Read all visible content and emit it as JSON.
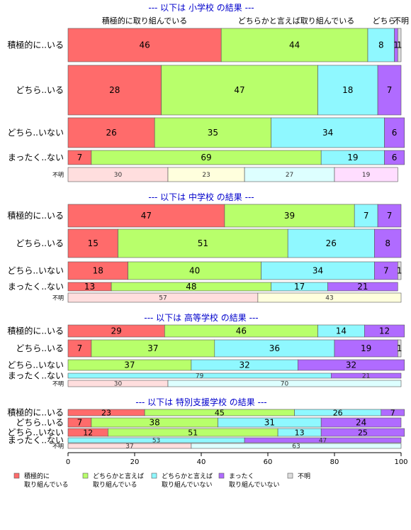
{
  "chart_data": {
    "type": "bar",
    "orientation": "horizontal-stacked-percent",
    "xlim": [
      0,
      100
    ],
    "x_ticks": [
      0,
      20,
      40,
      60,
      80,
      100
    ],
    "column_headers": [
      "積極的に取り組んでいる",
      "どちらかと言えば取り組んでいる",
      "どちら",
      "不明"
    ],
    "legend": [
      {
        "line1": "積極的に",
        "line2": "取り組んでいる",
        "color": "#ff6b6b"
      },
      {
        "line1": "どちらかと言えば",
        "line2": "取り組んでいる",
        "color": "#b8ff6b"
      },
      {
        "line1": "どちらかと言えば",
        "line2": "取り組んでいない",
        "color": "#8ff8ff"
      },
      {
        "line1": "まったく",
        "line2": "取り組んでいない",
        "color": "#b06bff"
      },
      {
        "line1": "不明",
        "line2": "",
        "color": "#dddddd"
      }
    ],
    "panels": [
      {
        "title": "--- 以下は 小学校 の結果 ---",
        "rows": [
          {
            "label": "積極的に..いる",
            "values": [
              46,
              44,
              8,
              1,
              1
            ]
          },
          {
            "label": "どちら..いる",
            "values": [
              28,
              47,
              18,
              7
            ]
          },
          {
            "label": "どちら..いない",
            "values": [
              26,
              35,
              34,
              6
            ]
          },
          {
            "label": "まったく..ない",
            "values": [
              7,
              69,
              19,
              6
            ]
          },
          {
            "label": "不明",
            "values": [
              30,
              23,
              27,
              19
            ]
          }
        ]
      },
      {
        "title": "--- 以下は 中学校 の結果 ---",
        "rows": [
          {
            "label": "積極的に..いる",
            "values": [
              47,
              39,
              7,
              7
            ]
          },
          {
            "label": "どちら..いる",
            "values": [
              15,
              51,
              26,
              8
            ]
          },
          {
            "label": "どちら..いない",
            "values": [
              18,
              40,
              34,
              7,
              1
            ]
          },
          {
            "label": "まったく..ない",
            "values": [
              13,
              48,
              17,
              21
            ]
          },
          {
            "label": "不明",
            "values": [
              57,
              43
            ]
          }
        ]
      },
      {
        "title": "--- 以下は 高等学校 の結果 ---",
        "rows": [
          {
            "label": "積極的に..いる",
            "values": [
              29,
              46,
              14,
              12
            ]
          },
          {
            "label": "どちら..いる",
            "values": [
              7,
              37,
              36,
              19,
              1
            ]
          },
          {
            "label": "どちら..いない",
            "values": [
              0,
              37,
              32,
              32
            ]
          },
          {
            "label": "まったく..ない",
            "values": [
              0,
              0,
              79,
              21
            ]
          },
          {
            "label": "不明",
            "values": [
              30,
              0,
              70
            ]
          }
        ]
      },
      {
        "title": "--- 以下は 特別支援学校 の結果 ---",
        "rows": [
          {
            "label": "積極的に..いる",
            "values": [
              23,
              45,
              26,
              7
            ]
          },
          {
            "label": "どちら..いる",
            "values": [
              7,
              38,
              31,
              24
            ]
          },
          {
            "label": "どちら..いない",
            "values": [
              12,
              51,
              13,
              25
            ]
          },
          {
            "label": "まったく..ない",
            "values": [
              0,
              0,
              53,
              47
            ]
          },
          {
            "label": "不明",
            "values": [
              37,
              0,
              63
            ]
          }
        ]
      }
    ]
  }
}
